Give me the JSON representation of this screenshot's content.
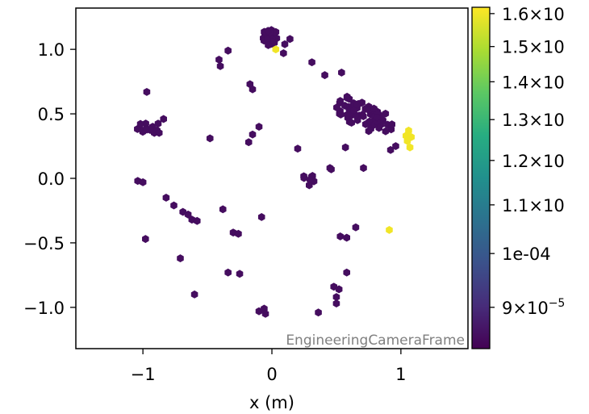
{
  "chart_data": {
    "type": "hexbin",
    "title": "",
    "xlabel": "x  (m)",
    "ylabel": "",
    "xlim": [
      -1.52,
      1.52
    ],
    "ylim": [
      -1.32,
      1.32
    ],
    "xticks": [
      -1,
      0,
      1
    ],
    "xtick_labels": [
      "−1",
      "0",
      "1"
    ],
    "yticks": [
      -1.0,
      -0.5,
      0.0,
      0.5,
      1.0
    ],
    "ytick_labels": [
      "−1.0",
      "−0.5",
      "0.0",
      "0.5",
      "1.0"
    ],
    "annotation": "EngineeringCameraFrame",
    "colormap": "viridis",
    "colorbar": {
      "scale": "log",
      "range": [
        8.3e-05,
        0.000162
      ],
      "tick_values": [
        0.00016,
        0.00015,
        0.00014,
        0.00013,
        0.00012,
        0.00011,
        0.0001,
        9e-05
      ],
      "tick_labels": [
        {
          "mant": "1.6",
          "exp": "",
          "sci": true
        },
        {
          "mant": "1.5",
          "exp": "",
          "sci": true
        },
        {
          "mant": "1.4",
          "exp": "",
          "sci": true
        },
        {
          "mant": "1.3",
          "exp": "",
          "sci": true
        },
        {
          "mant": "1.2",
          "exp": "",
          "sci": true
        },
        {
          "mant": "1.1",
          "exp": "",
          "sci": true
        },
        {
          "mant": "1e-04",
          "exp": "",
          "sci": false
        },
        {
          "mant": "9",
          "exp": "−5",
          "sci": true
        }
      ]
    },
    "low_value": 8.5e-05,
    "high_value": 0.00016,
    "clusters": [
      {
        "value": 8.5e-05,
        "center": [
          -0.02,
          1.09
        ],
        "spread": [
          0.06,
          0.06
        ],
        "n": 30
      },
      {
        "value": 8.5e-05,
        "center": [
          0.72,
          0.48
        ],
        "spread": [
          0.23,
          0.09
        ],
        "n": 65
      },
      {
        "value": 8.5e-05,
        "center": [
          -0.96,
          0.39
        ],
        "spread": [
          0.09,
          0.04
        ],
        "n": 16
      },
      {
        "value": 8.5e-05,
        "center": [
          0.28,
          -0.02
        ],
        "spread": [
          0.08,
          0.04
        ],
        "n": 7
      }
    ],
    "points": [
      {
        "x": 0.03,
        "y": 1.0,
        "v": 0.00016
      },
      {
        "x": 0.91,
        "y": -0.4,
        "v": 0.00016
      },
      {
        "x": 1.06,
        "y": 0.37,
        "v": 0.00016
      },
      {
        "x": 1.04,
        "y": 0.33,
        "v": 0.00016
      },
      {
        "x": 1.08,
        "y": 0.32,
        "v": 0.00016
      },
      {
        "x": 1.05,
        "y": 0.29,
        "v": 0.00016
      },
      {
        "x": 1.07,
        "y": 0.24,
        "v": 0.00016
      },
      {
        "x": 0.1,
        "y": 1.04,
        "v": 8.5e-05
      },
      {
        "x": 0.14,
        "y": 1.08,
        "v": 8.5e-05
      },
      {
        "x": 0.09,
        "y": 0.97,
        "v": 8.5e-05
      },
      {
        "x": -0.34,
        "y": 0.99,
        "v": 8.5e-05
      },
      {
        "x": -0.41,
        "y": 0.92,
        "v": 8.5e-05
      },
      {
        "x": -0.4,
        "y": 0.87,
        "v": 8.5e-05
      },
      {
        "x": 0.31,
        "y": 0.9,
        "v": 8.5e-05
      },
      {
        "x": 0.41,
        "y": 0.8,
        "v": 8.5e-05
      },
      {
        "x": 0.54,
        "y": 0.82,
        "v": 8.5e-05
      },
      {
        "x": -0.17,
        "y": 0.73,
        "v": 8.5e-05
      },
      {
        "x": -0.15,
        "y": 0.69,
        "v": 8.5e-05
      },
      {
        "x": -0.97,
        "y": 0.67,
        "v": 8.5e-05
      },
      {
        "x": -0.84,
        "y": 0.46,
        "v": 8.5e-05
      },
      {
        "x": -0.48,
        "y": 0.31,
        "v": 8.5e-05
      },
      {
        "x": -0.1,
        "y": 0.4,
        "v": 8.5e-05
      },
      {
        "x": -0.15,
        "y": 0.34,
        "v": 8.5e-05
      },
      {
        "x": -0.18,
        "y": 0.28,
        "v": 8.5e-05
      },
      {
        "x": 0.2,
        "y": 0.23,
        "v": 8.5e-05
      },
      {
        "x": 0.57,
        "y": 0.24,
        "v": 8.5e-05
      },
      {
        "x": 0.46,
        "y": 0.07,
        "v": 8.5e-05
      },
      {
        "x": 0.71,
        "y": 0.08,
        "v": 8.5e-05
      },
      {
        "x": 0.92,
        "y": 0.22,
        "v": 8.5e-05
      },
      {
        "x": 0.96,
        "y": 0.25,
        "v": 8.5e-05
      },
      {
        "x": -1.04,
        "y": -0.02,
        "v": 8.5e-05
      },
      {
        "x": -1.0,
        "y": -0.03,
        "v": 8.5e-05
      },
      {
        "x": -0.82,
        "y": -0.15,
        "v": 8.5e-05
      },
      {
        "x": -0.76,
        "y": -0.21,
        "v": 8.5e-05
      },
      {
        "x": -0.69,
        "y": -0.26,
        "v": 8.5e-05
      },
      {
        "x": -0.65,
        "y": -0.28,
        "v": 8.5e-05
      },
      {
        "x": -0.62,
        "y": -0.32,
        "v": 8.5e-05
      },
      {
        "x": -0.58,
        "y": -0.33,
        "v": 8.5e-05
      },
      {
        "x": -0.38,
        "y": -0.24,
        "v": 8.5e-05
      },
      {
        "x": -0.3,
        "y": -0.42,
        "v": 8.5e-05
      },
      {
        "x": -0.26,
        "y": -0.43,
        "v": 8.5e-05
      },
      {
        "x": -0.08,
        "y": -0.3,
        "v": 8.5e-05
      },
      {
        "x": -0.98,
        "y": -0.47,
        "v": 8.5e-05
      },
      {
        "x": -0.71,
        "y": -0.62,
        "v": 8.5e-05
      },
      {
        "x": -0.6,
        "y": -0.9,
        "v": 8.5e-05
      },
      {
        "x": -0.34,
        "y": -0.73,
        "v": 8.5e-05
      },
      {
        "x": -0.25,
        "y": -0.74,
        "v": 8.5e-05
      },
      {
        "x": 0.65,
        "y": -0.38,
        "v": 8.5e-05
      },
      {
        "x": 0.53,
        "y": -0.45,
        "v": 8.5e-05
      },
      {
        "x": 0.58,
        "y": -0.46,
        "v": 8.5e-05
      },
      {
        "x": 0.58,
        "y": -0.73,
        "v": 8.5e-05
      },
      {
        "x": 0.48,
        "y": -0.84,
        "v": 8.5e-05
      },
      {
        "x": 0.52,
        "y": -0.86,
        "v": 8.5e-05
      },
      {
        "x": 0.5,
        "y": -0.92,
        "v": 8.5e-05
      },
      {
        "x": 0.5,
        "y": -0.97,
        "v": 8.5e-05
      },
      {
        "x": 0.36,
        "y": -1.04,
        "v": 8.5e-05
      },
      {
        "x": -0.1,
        "y": -1.03,
        "v": 8.5e-05
      },
      {
        "x": -0.06,
        "y": -1.01,
        "v": 8.5e-05
      },
      {
        "x": -0.05,
        "y": -1.05,
        "v": 8.5e-05
      },
      {
        "x": 0.45,
        "y": 0.08,
        "v": 8.5e-05
      }
    ]
  }
}
